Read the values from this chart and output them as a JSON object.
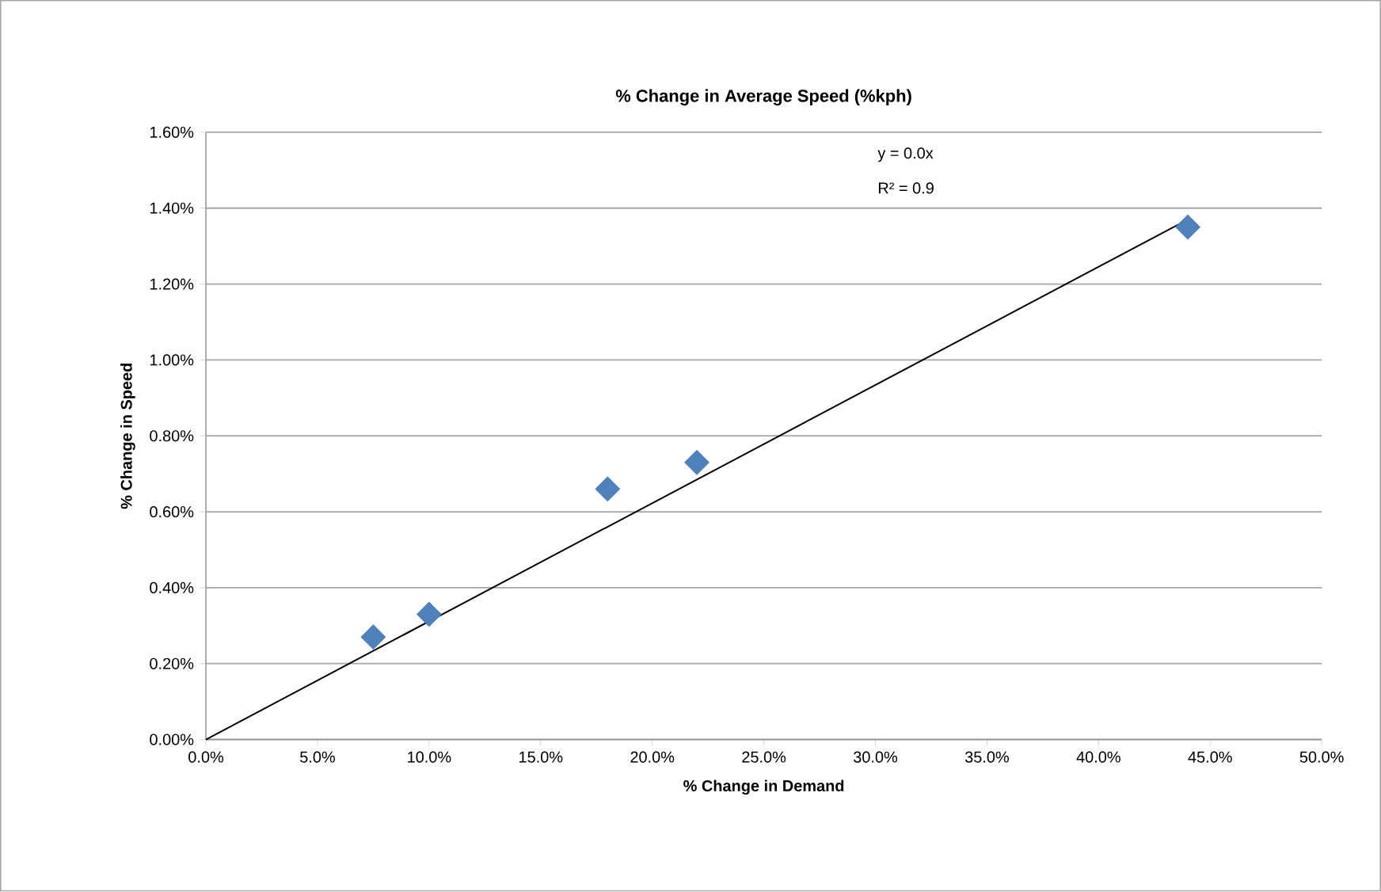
{
  "chart_data": {
    "type": "scatter",
    "title": "% Change in Average Speed (%kph)",
    "xlabel": "% Change in Demand",
    "ylabel": "% Change in Speed",
    "xlim": [
      0,
      50
    ],
    "ylim": [
      0,
      1.6
    ],
    "xticks": [
      {
        "value": 0,
        "label": "0.0%"
      },
      {
        "value": 5,
        "label": "5.0%"
      },
      {
        "value": 10,
        "label": "10.0%"
      },
      {
        "value": 15,
        "label": "15.0%"
      },
      {
        "value": 20,
        "label": "20.0%"
      },
      {
        "value": 25,
        "label": "25.0%"
      },
      {
        "value": 30,
        "label": "30.0%"
      },
      {
        "value": 35,
        "label": "35.0%"
      },
      {
        "value": 40,
        "label": "40.0%"
      },
      {
        "value": 45,
        "label": "45.0%"
      },
      {
        "value": 50,
        "label": "50.0%"
      }
    ],
    "yticks": [
      {
        "value": 0,
        "label": "0.00%"
      },
      {
        "value": 0.2,
        "label": "0.20%"
      },
      {
        "value": 0.4,
        "label": "0.40%"
      },
      {
        "value": 0.6,
        "label": "0.60%"
      },
      {
        "value": 0.8,
        "label": "0.80%"
      },
      {
        "value": 1.0,
        "label": "1.00%"
      },
      {
        "value": 1.2,
        "label": "1.20%"
      },
      {
        "value": 1.4,
        "label": "1.40%"
      },
      {
        "value": 1.6,
        "label": "1.60%"
      }
    ],
    "grid": "y",
    "series": [
      {
        "marker": "diamond",
        "color": "#4f81bd",
        "x": [
          7.5,
          10,
          18,
          22,
          44
        ],
        "values": [
          0.27,
          0.33,
          0.66,
          0.73,
          1.35
        ]
      },
      {
        "type": "line",
        "marker": "none",
        "color": "#000000",
        "x": [
          0,
          44
        ],
        "values": [
          0,
          1.37
        ]
      }
    ],
    "annotations": [
      "y = 0.0x",
      "R² = 0.9"
    ]
  }
}
